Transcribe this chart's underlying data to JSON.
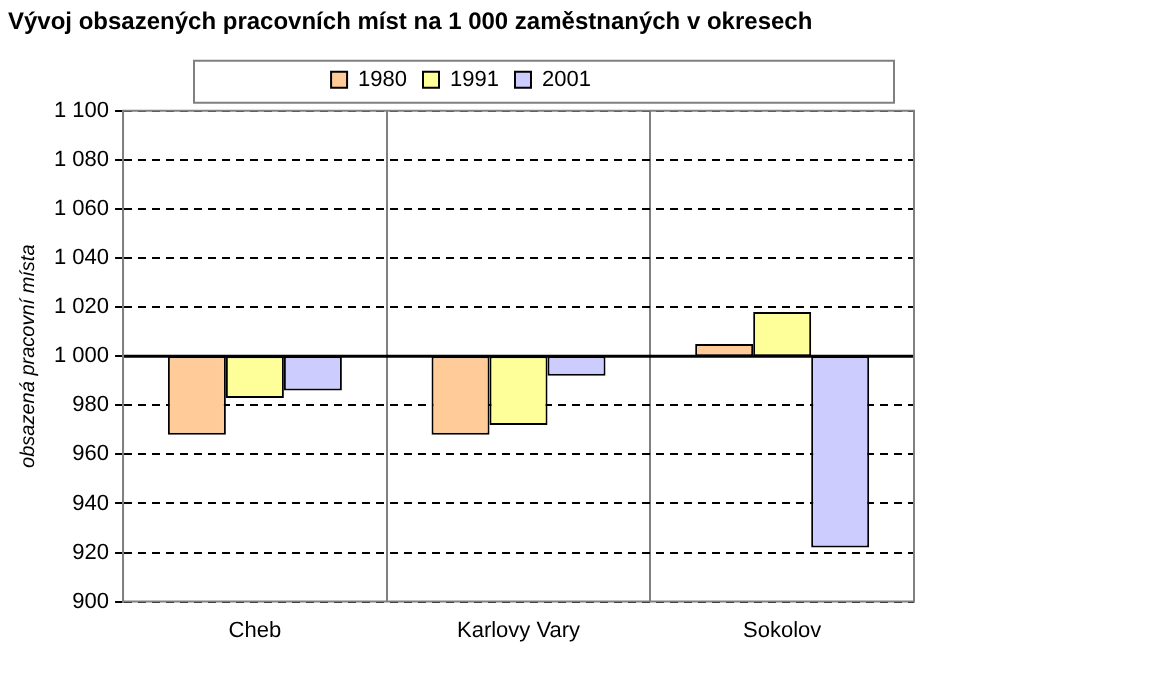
{
  "chart_data": {
    "type": "bar",
    "title": "Vývoj obsazených pracovních míst na 1 000 zaměstnaných v okresech",
    "ylabel": "obsazená pracovní místa",
    "categories": [
      "Cheb",
      "Karlovy Vary",
      "Sokolov"
    ],
    "series": [
      {
        "name": "1980",
        "color": "#ffcc99",
        "base": [
          1000,
          1000,
          1000
        ],
        "values": [
          -32,
          -32,
          5
        ]
      },
      {
        "name": "1991",
        "color": "#ffff99",
        "base": [
          1000,
          1000,
          1000
        ],
        "values": [
          -17,
          -28,
          18
        ]
      },
      {
        "name": "2001",
        "color": "#ccccff",
        "base": [
          1000,
          1000,
          1000
        ],
        "values": [
          -14,
          -8,
          -78
        ]
      }
    ],
    "ylim": [
      900,
      1100
    ],
    "yticks": [
      900,
      920,
      940,
      960,
      980,
      {
        "value": 1000,
        "label": "1 000"
      },
      {
        "value": 1020,
        "label": "1 020"
      },
      {
        "value": 1040,
        "label": "1 040"
      },
      {
        "value": 1060,
        "label": "1 060"
      },
      {
        "value": 1080,
        "label": "1 080"
      },
      {
        "value": 1100,
        "label": "1 100"
      }
    ],
    "ref_lines": [
      {
        "axis": "y",
        "value": 1000,
        "color": "#000000"
      }
    ],
    "grid": true,
    "legend": "top"
  }
}
